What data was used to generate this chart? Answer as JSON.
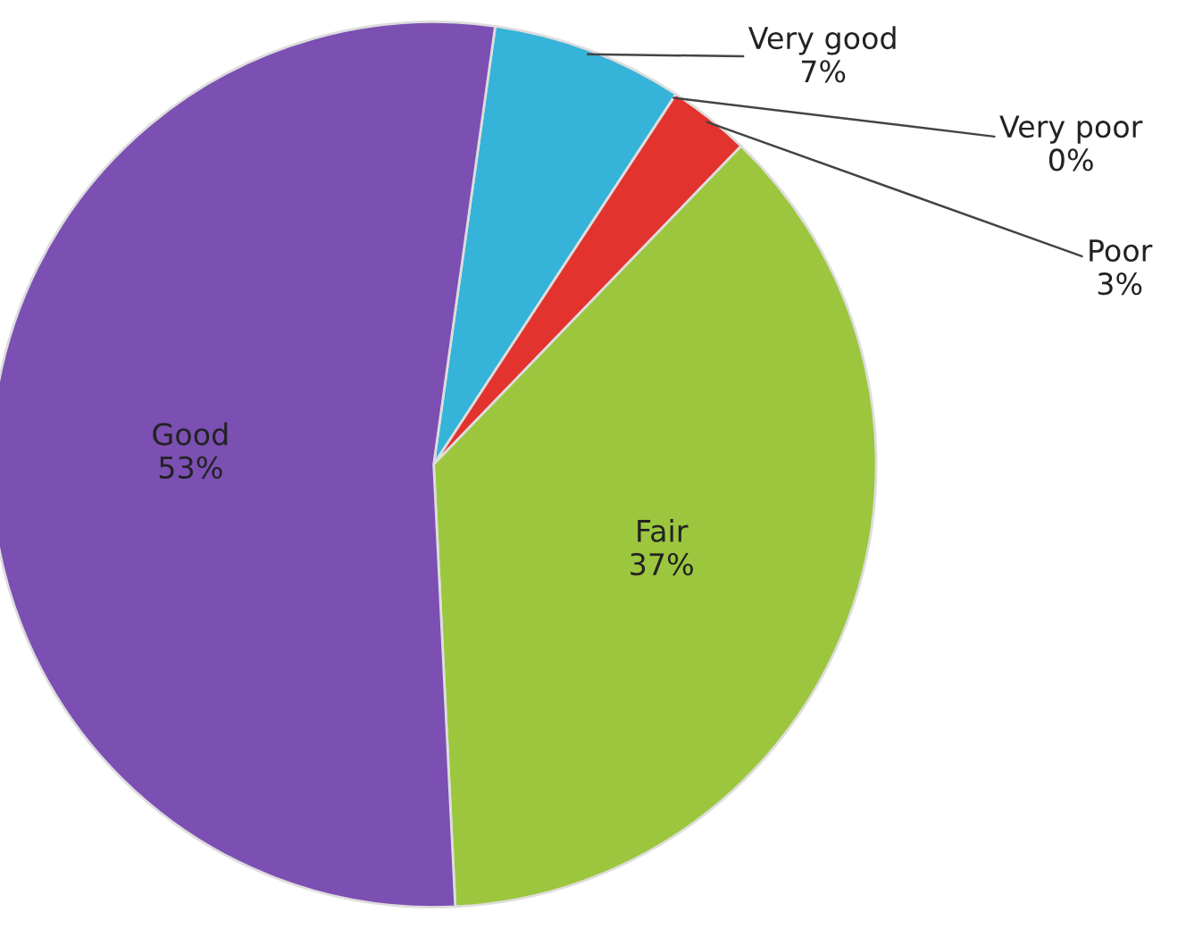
{
  "chart_data": {
    "type": "pie",
    "categories": [
      "Very good",
      "Very poor",
      "Poor",
      "Fair",
      "Good"
    ],
    "values": [
      7,
      0,
      3,
      37,
      53
    ],
    "value_labels": [
      "7%",
      "0%",
      "3%",
      "37%",
      "53%"
    ],
    "colors": [
      "#35b3d8",
      "#3a6fb0",
      "#e3332f",
      "#9cc63e",
      "#7c4fb3"
    ],
    "legend": false
  }
}
